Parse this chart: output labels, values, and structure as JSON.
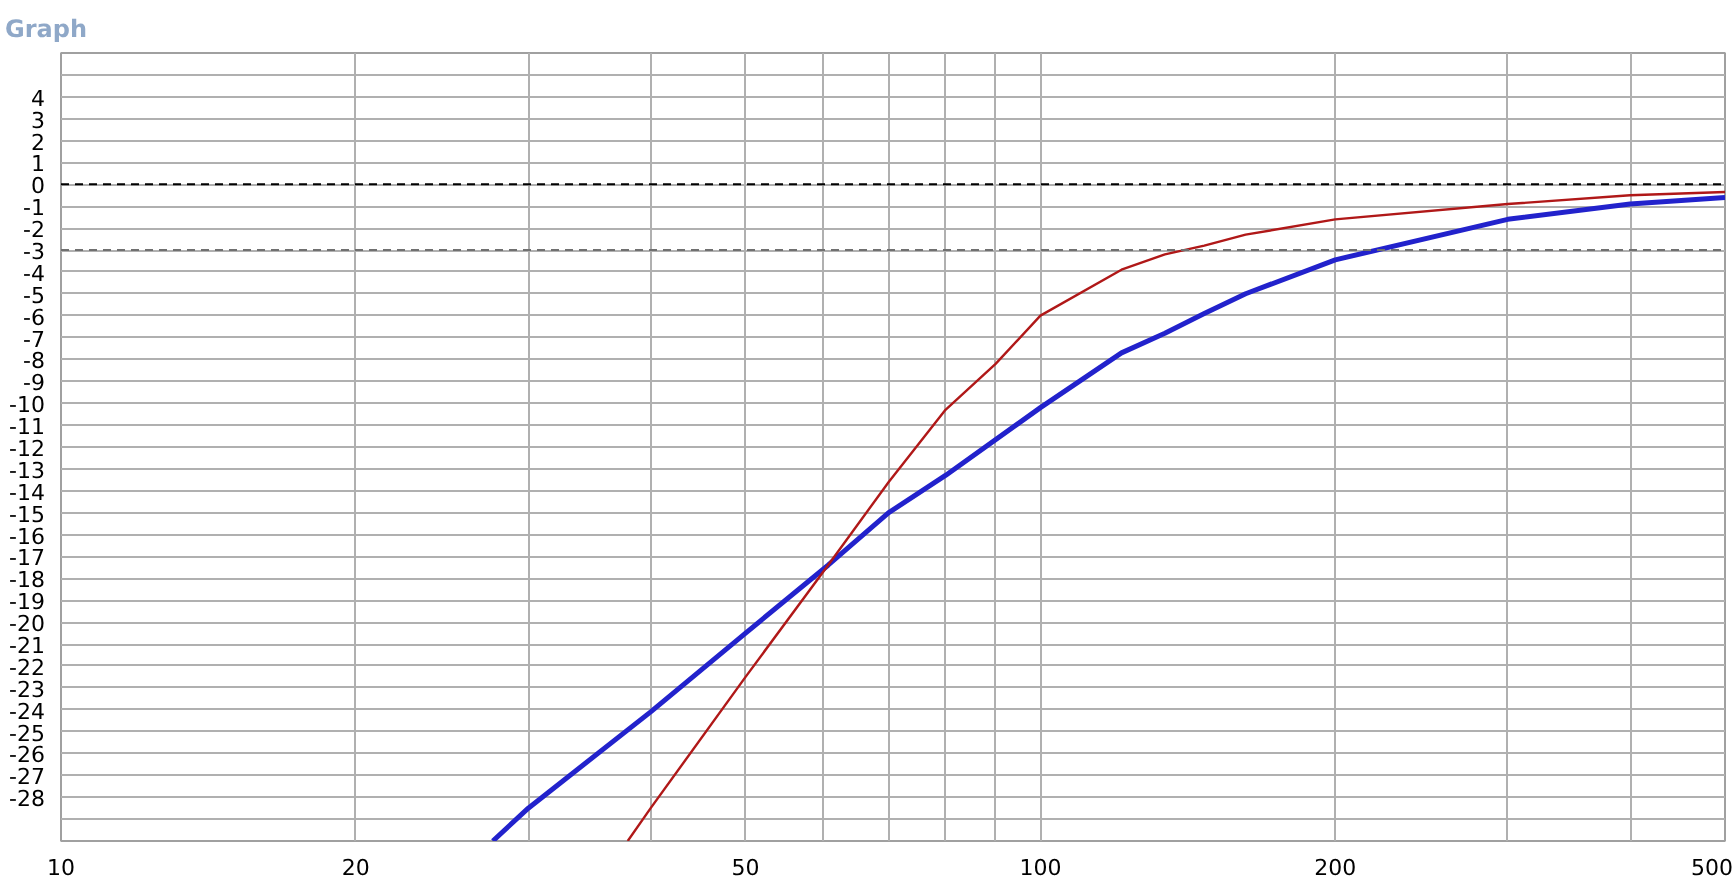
{
  "chart_data": {
    "type": "line",
    "title": "Graph",
    "log": "x",
    "grid": true,
    "line_style": "solid",
    "xlim": [
      10,
      500
    ],
    "ylim": [
      -30,
      6
    ],
    "xticks": [
      10,
      20,
      {
        "value": 30,
        "label": null
      },
      {
        "value": 40,
        "label": null
      },
      50,
      {
        "value": 60,
        "label": null
      },
      {
        "value": 70,
        "label": null
      },
      {
        "value": 80,
        "label": null
      },
      {
        "value": 90,
        "label": null
      },
      100,
      200,
      {
        "value": 300,
        "label": null
      },
      {
        "value": 400,
        "label": null
      },
      500
    ],
    "yticks": [
      {
        "value": -30,
        "label": null
      },
      {
        "value": -29,
        "label": null
      },
      -28,
      -27,
      -26,
      -25,
      -24,
      -23,
      -22,
      -21,
      -20,
      -19,
      -18,
      -17,
      -16,
      -15,
      -14,
      -13,
      -12,
      -11,
      -10,
      -9,
      -8,
      -7,
      -6,
      -5,
      -4,
      -3,
      -2,
      -1,
      0,
      1,
      2,
      3,
      4,
      {
        "value": 5,
        "label": null
      },
      {
        "value": 6,
        "label": null
      }
    ],
    "ref_lines": [
      {
        "axis": "y",
        "value": 0,
        "label": null,
        "color": "#000000",
        "line_style": "dashed"
      },
      {
        "axis": "y",
        "value": -3,
        "label": null,
        "color": "#707070",
        "line_style": "dashed"
      }
    ],
    "series": [
      {
        "color": "#2222cc",
        "x": [
          27.6,
          30,
          40,
          50,
          60.7,
          70,
          80,
          100,
          121,
          134,
          147,
          162,
          200,
          300,
          400,
          500
        ],
        "values": [
          -30,
          -28.5,
          -24.1,
          -20.5,
          -17.4,
          -15,
          -13.3,
          -10.2,
          -7.7,
          -6.8,
          -5.9,
          -5.0,
          -3.45,
          -1.6,
          -0.9,
          -0.6
        ]
      },
      {
        "color": "#b01818",
        "x": [
          37.9,
          40,
          50,
          60.7,
          70,
          80,
          90,
          100,
          121,
          134,
          147,
          162,
          200,
          300,
          400,
          500
        ],
        "values": [
          -30,
          -28.5,
          -22.5,
          -17.4,
          -13.6,
          -10.3,
          -8.2,
          -6.0,
          -3.9,
          -3.2,
          -2.8,
          -2.3,
          -1.6,
          -0.9,
          -0.5,
          -0.35
        ]
      }
    ]
  }
}
